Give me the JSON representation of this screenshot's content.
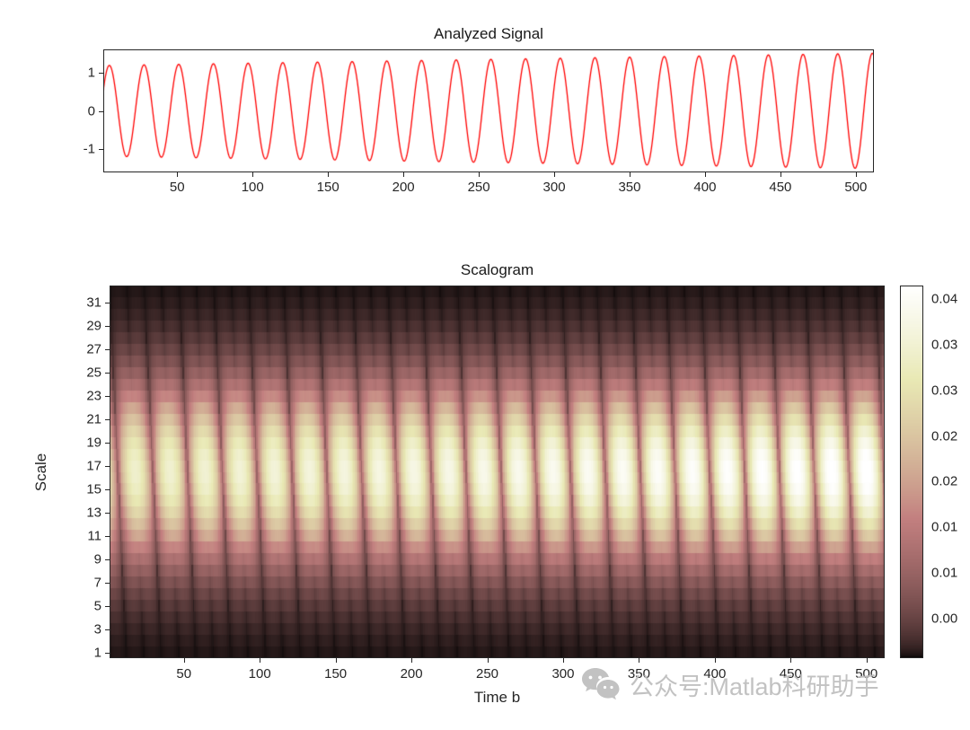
{
  "figure": {
    "background": "#ffffff",
    "axis_color": "#262626",
    "tick_font_size": 15
  },
  "watermark": {
    "icon": "wechat-icon",
    "text": "公众号:Matlab科研助手",
    "color": "#bdbdbd"
  },
  "chart_data": [
    {
      "type": "line",
      "title": "Analyzed Signal",
      "line_color": "#ff0000",
      "xlim": [
        1,
        512
      ],
      "ylim": [
        -1.6,
        1.6
      ],
      "xticks": [
        50,
        100,
        150,
        200,
        250,
        300,
        350,
        400,
        450,
        500
      ],
      "yticks": [
        1,
        0,
        -1
      ],
      "grid": false,
      "legend": null,
      "signal": {
        "model": "amplitude-modulated sine, y(t) = A(t)*sin(2*pi*t/period + phase)",
        "n": 512,
        "period": 23,
        "phase": 0.2,
        "amp_start": 1.18,
        "amp_end": 1.5
      }
    },
    {
      "type": "heatmap",
      "title": "Scalogram",
      "xlabel": "Time b",
      "ylabel": "Scale",
      "xlim": [
        1,
        512
      ],
      "n_time": 512,
      "n_scales": 32,
      "xticks": [
        50,
        100,
        150,
        200,
        250,
        300,
        350,
        400,
        450,
        500
      ],
      "yticks": [
        1,
        3,
        5,
        7,
        9,
        11,
        13,
        15,
        17,
        19,
        21,
        23,
        25,
        27,
        29,
        31
      ],
      "colormap": "pink",
      "clim": [
        0,
        0.04
      ],
      "colorbar_labels_top_to_bottom": [
        "0.04",
        "0.03",
        "0.03",
        "0.02",
        "0.02",
        "0.01",
        "0.01",
        "0.00"
      ],
      "model": {
        "description": "CWT magnitude: bright band centered at scale ~16 with periodic vertical stripes at the signal period",
        "center_scale": 16.5,
        "scale_sigma": 5.5,
        "time_period": 23,
        "time_phase": 6,
        "scale_shear": 0.35,
        "stripe_floor": 0.18,
        "growth_start": 0.82,
        "growth_end": 1.04,
        "peak_value": 0.04
      }
    }
  ]
}
